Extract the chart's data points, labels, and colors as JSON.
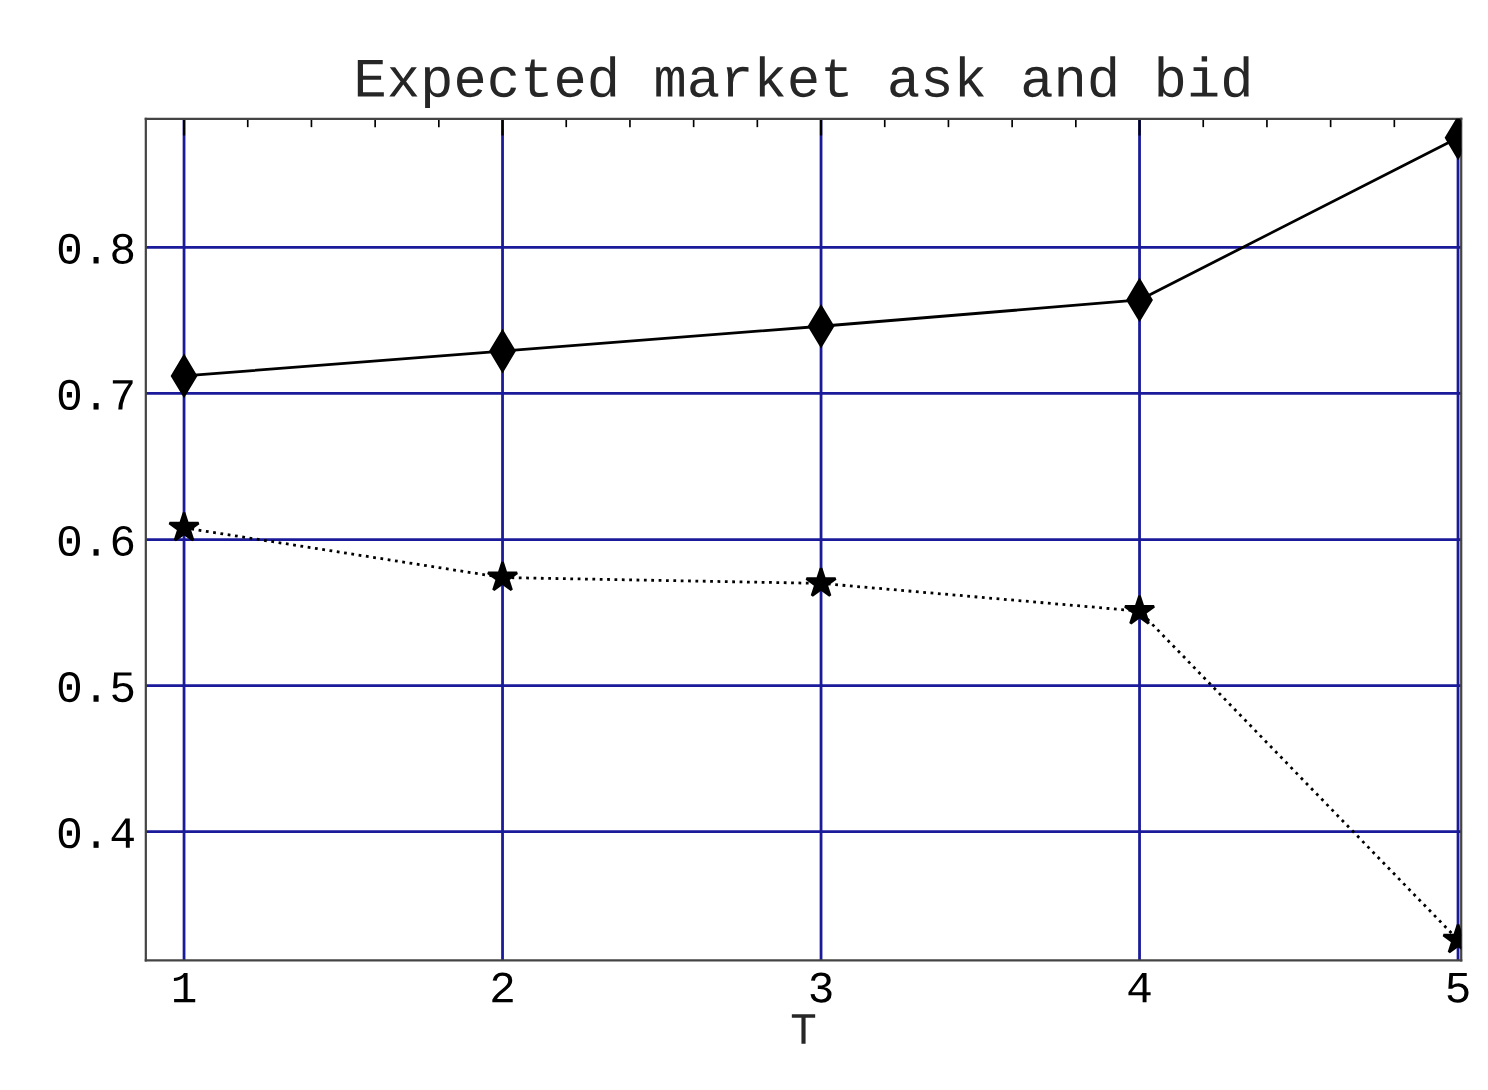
{
  "chart_data": {
    "type": "line",
    "title": "Expected market ask and bid",
    "xlabel": "T",
    "x": [
      1,
      2,
      3,
      4,
      5
    ],
    "series": [
      {
        "color": "#000000",
        "values": [
          0.712,
          0.729,
          0.746,
          0.764,
          0.875
        ],
        "marker": "diamond",
        "line_style": "solid"
      },
      {
        "color": "#000000",
        "values": [
          0.608,
          0.574,
          0.57,
          0.551,
          0.326
        ],
        "marker": "star",
        "line_style": "dotted"
      }
    ],
    "xlim": [
      0.88,
      5.01
    ],
    "ylim": [
      0.312,
      0.888
    ],
    "xticks": [
      1,
      2,
      3,
      4,
      5
    ],
    "yticks": [
      0.4,
      0.5,
      0.6,
      0.7,
      0.8
    ],
    "grid": true,
    "legend": false
  }
}
